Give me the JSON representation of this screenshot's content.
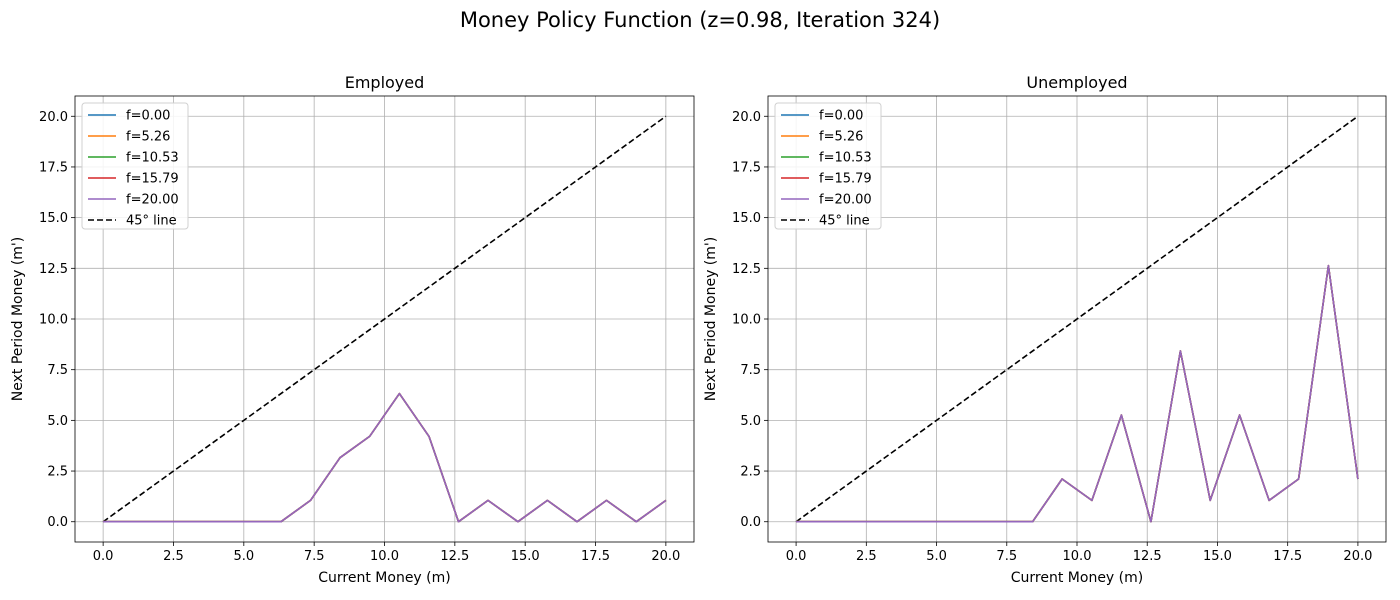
{
  "figure": {
    "title": "Money Policy Function (z=0.98, Iteration 324)"
  },
  "chart_data": [
    {
      "type": "line",
      "title": "Employed",
      "xlabel": "Current Money (m)",
      "ylabel": "Next Period Money (m')",
      "xlim": [
        -1.0,
        21.0
      ],
      "ylim": [
        -1.0,
        21.0
      ],
      "xticks": [
        "0.0",
        "2.5",
        "5.0",
        "7.5",
        "10.0",
        "12.5",
        "15.0",
        "17.5",
        "20.0"
      ],
      "yticks": [
        "0.0",
        "2.5",
        "5.0",
        "7.5",
        "10.0",
        "12.5",
        "15.0",
        "17.5",
        "20.0"
      ],
      "grid": true,
      "legend_position": "top-left",
      "x": [
        0.0,
        1.05,
        2.11,
        3.16,
        4.21,
        5.26,
        6.32,
        7.37,
        8.42,
        9.47,
        10.53,
        11.58,
        12.63,
        13.68,
        14.74,
        15.79,
        16.84,
        17.89,
        18.95,
        20.0
      ],
      "series": [
        {
          "name": "f=0.00",
          "color": "#1f77b4",
          "values": [
            0,
            0,
            0,
            0,
            0,
            0,
            0,
            1.05,
            3.16,
            4.21,
            6.32,
            4.21,
            0,
            1.05,
            0,
            1.05,
            0,
            1.05,
            0,
            1.05
          ]
        },
        {
          "name": "f=5.26",
          "color": "#ff7f0e",
          "values": [
            0,
            0,
            0,
            0,
            0,
            0,
            0,
            1.05,
            3.16,
            4.21,
            6.32,
            4.21,
            0,
            1.05,
            0,
            1.05,
            0,
            1.05,
            0,
            1.05
          ]
        },
        {
          "name": "f=10.53",
          "color": "#2ca02c",
          "values": [
            0,
            0,
            0,
            0,
            0,
            0,
            0,
            1.05,
            3.16,
            4.21,
            6.32,
            4.21,
            0,
            1.05,
            0,
            1.05,
            0,
            1.05,
            0,
            1.05
          ]
        },
        {
          "name": "f=15.79",
          "color": "#d62728",
          "values": [
            0,
            0,
            0,
            0,
            0,
            0,
            0,
            1.05,
            3.16,
            4.21,
            6.32,
            4.21,
            0,
            1.05,
            0,
            1.05,
            0,
            1.05,
            0,
            1.05
          ]
        },
        {
          "name": "f=20.00",
          "color": "#9467bd",
          "values": [
            0,
            0,
            0,
            0,
            0,
            0,
            0,
            1.05,
            3.16,
            4.21,
            6.32,
            4.21,
            0,
            1.05,
            0,
            1.05,
            0,
            1.05,
            0,
            1.05
          ]
        }
      ],
      "reference_line": {
        "name": "45° line",
        "color": "#000000",
        "x": [
          0,
          20
        ],
        "y": [
          0,
          20
        ]
      }
    },
    {
      "type": "line",
      "title": "Unemployed",
      "xlabel": "Current Money (m)",
      "ylabel": "Next Period Money (m')",
      "xlim": [
        -1.0,
        21.0
      ],
      "ylim": [
        -1.0,
        21.0
      ],
      "xticks": [
        "0.0",
        "2.5",
        "5.0",
        "7.5",
        "10.0",
        "12.5",
        "15.0",
        "17.5",
        "20.0"
      ],
      "yticks": [
        "0.0",
        "2.5",
        "5.0",
        "7.5",
        "10.0",
        "12.5",
        "15.0",
        "17.5",
        "20.0"
      ],
      "grid": true,
      "legend_position": "top-left",
      "x": [
        0.0,
        1.05,
        2.11,
        3.16,
        4.21,
        5.26,
        6.32,
        7.37,
        8.42,
        9.47,
        10.53,
        11.58,
        12.63,
        13.68,
        14.74,
        15.79,
        16.84,
        17.89,
        18.95,
        20.0
      ],
      "series": [
        {
          "name": "f=0.00",
          "color": "#1f77b4",
          "values": [
            0,
            0,
            0,
            0,
            0,
            0,
            0,
            0,
            0,
            2.11,
            1.05,
            5.26,
            0,
            8.42,
            1.05,
            5.26,
            1.05,
            2.11,
            12.63,
            2.11
          ]
        },
        {
          "name": "f=5.26",
          "color": "#ff7f0e",
          "values": [
            0,
            0,
            0,
            0,
            0,
            0,
            0,
            0,
            0,
            2.11,
            1.05,
            5.26,
            0,
            8.42,
            1.05,
            5.26,
            1.05,
            2.11,
            12.63,
            2.11
          ]
        },
        {
          "name": "f=10.53",
          "color": "#2ca02c",
          "values": [
            0,
            0,
            0,
            0,
            0,
            0,
            0,
            0,
            0,
            2.11,
            1.05,
            5.26,
            0,
            8.42,
            1.05,
            5.26,
            1.05,
            2.11,
            12.63,
            2.11
          ]
        },
        {
          "name": "f=15.79",
          "color": "#d62728",
          "values": [
            0,
            0,
            0,
            0,
            0,
            0,
            0,
            0,
            0,
            2.11,
            1.05,
            5.26,
            0,
            8.42,
            1.05,
            5.26,
            1.05,
            2.11,
            12.63,
            2.11
          ]
        },
        {
          "name": "f=20.00",
          "color": "#9467bd",
          "values": [
            0,
            0,
            0,
            0,
            0,
            0,
            0,
            0,
            0,
            2.11,
            1.05,
            5.26,
            0,
            8.42,
            1.05,
            5.26,
            1.05,
            2.11,
            12.63,
            2.11
          ]
        }
      ],
      "reference_line": {
        "name": "45° line",
        "color": "#000000",
        "x": [
          0,
          20
        ],
        "y": [
          0,
          20
        ]
      }
    }
  ]
}
